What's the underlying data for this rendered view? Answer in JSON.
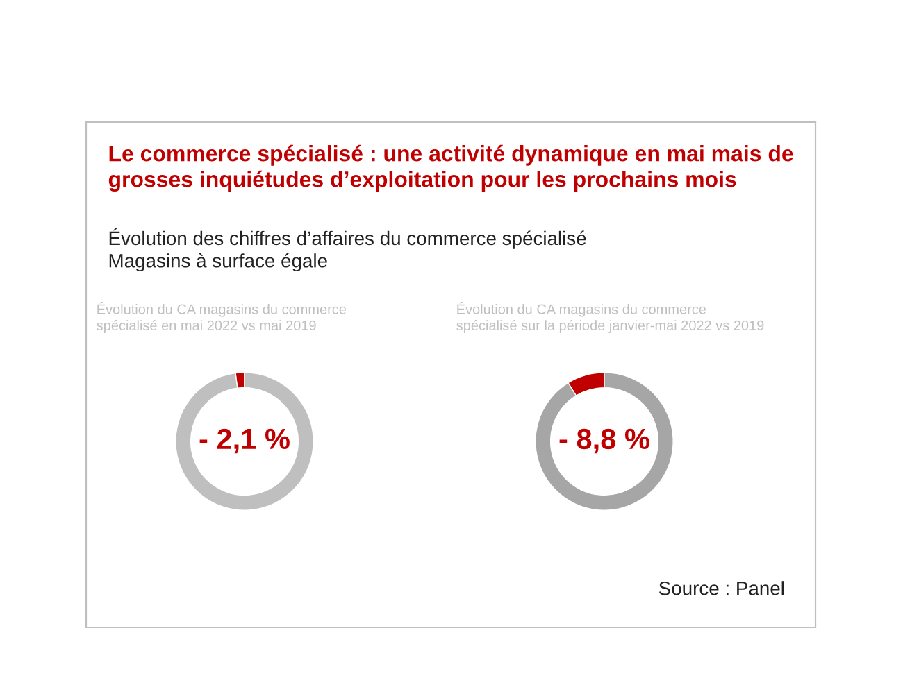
{
  "chart_data": [
    {
      "type": "other",
      "title": "Le commerce spécialisé : une activité dynamique en mai mais de\ngrosses inquiétudes d’exploitation pour les prochains mois",
      "subtitle": "Évolution des chiffres d’affaires du commerce spécialisé\nMagasins à surface égale",
      "annotations": [
        "Source : Panel"
      ]
    },
    {
      "type": "donut",
      "title": "Évolution du CA magasins du commerce\nspécialisé en mai 2022 vs mai 2019",
      "categories": [
        null,
        null
      ],
      "values": [
        2.1,
        97.9
      ],
      "colors": [
        "#c00000",
        "#bfbfbf"
      ],
      "annotations": [
        "- 2,1 %"
      ]
    },
    {
      "type": "donut",
      "title": "Évolution du CA magasins du commerce\nspécialisé sur la période janvier-mai 2022 vs 2019",
      "categories": [
        null,
        null
      ],
      "values": [
        8.8,
        91.2
      ],
      "colors": [
        "#c00000",
        "#a6a6a6"
      ],
      "annotations": [
        "- 8,8 %"
      ]
    }
  ]
}
